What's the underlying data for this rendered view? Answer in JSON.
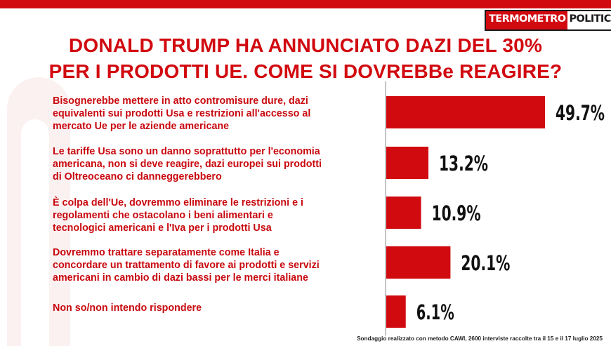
{
  "header": {
    "logo_left": "TERMOMETRO",
    "logo_right": "POLITICO",
    "title_line1": "DONALD TRUMP HA ANNUNCIATO DAZI DEL 30%",
    "title_line2": "PER I PRODOTTI UE. COME SI DOVREBBe REAGIRE?"
  },
  "colors": {
    "accent": "#d10a10",
    "bar": "#d10a10",
    "axis": "#8a8a8a"
  },
  "chart_data": {
    "type": "bar",
    "orientation": "horizontal",
    "title": "DONALD TRUMP HA ANNUNCIATO DAZI DEL 30% PER I PRODOTTI UE. COME SI DOVREBBe REAGIRE?",
    "categories": [
      "Bisognerebbe mettere in atto contromisure dure, dazi equivalenti sui prodotti Usa e restrizioni all'accesso al mercato Ue per le aziende americane",
      "Le tariffe Usa sono un danno soprattutto per l'economia americana, non si deve reagire, dazi europei sui prodotti di Oltreoceano ci danneggerebbero",
      "È colpa dell'Ue, dovremmo eliminare le restrizioni e i regolamenti che ostacolano i beni alimentari e tecnologici americani e l'Iva per i prodotti Usa",
      "Dovremmo trattare separatamente come Italia e concordare un trattamento di favore ai prodotti e servizi americani in cambio di dazi bassi per le merci italiane",
      "Non so/non intendo rispondere"
    ],
    "category_lines": [
      [
        "Bisognerebbe mettere in atto contromisure dure, dazi",
        "equivalenti sui prodotti Usa e restrizioni all'accesso al",
        "mercato Ue per le aziende americane"
      ],
      [
        "Le tariffe Usa sono un danno soprattutto per l'economia",
        "americana, non si deve reagire, dazi europei sui prodotti",
        "di Oltreoceano ci danneggerebbero"
      ],
      [
        "È colpa dell'Ue, dovremmo eliminare le restrizioni e i",
        "regolamenti che ostacolano i beni alimentari e",
        "tecnologici americani e l'Iva per i prodotti Usa"
      ],
      [
        "Dovremmo trattare separatamente come Italia e",
        "concordare un trattamento di favore ai prodotti e servizi",
        "americani in cambio di dazi bassi per le merci italiane"
      ],
      [
        "Non so/non intendo rispondere"
      ]
    ],
    "values": [
      49.7,
      13.2,
      10.9,
      20.1,
      6.1
    ],
    "labels": [
      "49.7%",
      "13.2%",
      "10.9%",
      "20.1%",
      "6.1%"
    ],
    "unit": "%",
    "grid": false,
    "legend": "none"
  },
  "footer": {
    "source": "Sondaggio realizzato con metodo CAWI, 2600 interviste raccolte tra il 15 e il 17 luglio 2025"
  }
}
